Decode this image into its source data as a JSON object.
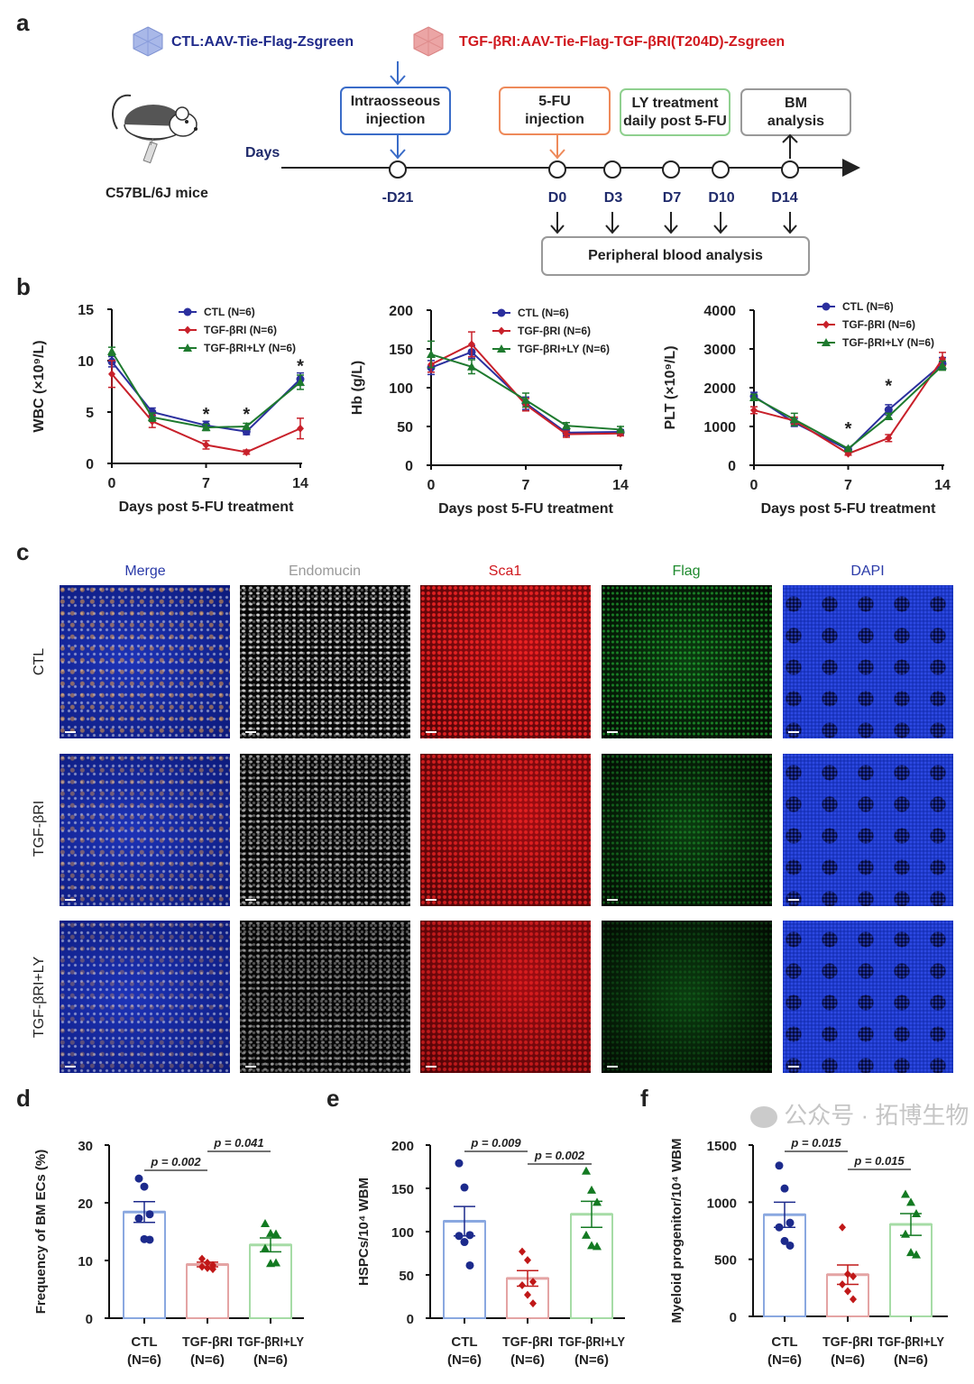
{
  "panel_letters": {
    "a": "a",
    "b": "b",
    "c": "c",
    "d": "d",
    "e": "e",
    "f": "f"
  },
  "panel_a": {
    "legend": [
      {
        "label": "CTL:AAV-Tie-Flag-Zsgreen",
        "color": "#1f2a8a"
      },
      {
        "label": "TGF-βRI:AAV-Tie-Flag-TGF-βRI(T204D)-Zsgreen",
        "color": "#d0181e"
      }
    ],
    "mouse_label": "C57BL/6J mice",
    "days_label": "Days",
    "boxes": [
      "Intraosseous\ninjection",
      "5-FU\ninjection",
      "LY treatment\ndaily post 5-FU",
      "BM\nanalysis"
    ],
    "timepoints": [
      "-D21",
      "D0",
      "D3",
      "D7",
      "D10",
      "D14"
    ],
    "blood_box": "Peripheral blood analysis"
  },
  "chart_data": [
    {
      "type": "line",
      "title": "",
      "xlabel": "Days post 5-FU treatment",
      "ylabel": "WBC (×10⁹/L)",
      "xlim": [
        0,
        14
      ],
      "ylim": [
        0,
        15
      ],
      "xticks": [
        0,
        7,
        14
      ],
      "yticks": [
        0,
        5,
        10,
        15
      ],
      "x": [
        0,
        3,
        7,
        10,
        14
      ],
      "series": [
        {
          "name": "CTL (N=6)",
          "color": "#2b2f9e",
          "marker": "circle",
          "values": [
            9.9,
            5.0,
            3.7,
            3.1,
            8.2
          ],
          "err": [
            0.5,
            0.4,
            0.4,
            0.3,
            0.6
          ]
        },
        {
          "name": "TGF-βRI (N=6)",
          "color": "#c8202a",
          "marker": "diamond",
          "values": [
            8.7,
            4.1,
            1.8,
            1.1,
            3.4
          ],
          "err": [
            1.3,
            0.6,
            0.4,
            0.2,
            1.0
          ]
        },
        {
          "name": "TGF-βRI+LY (N=6)",
          "color": "#1e7a2e",
          "marker": "triangle",
          "values": [
            10.9,
            4.5,
            3.5,
            3.6,
            7.9
          ],
          "err": [
            0.4,
            0.4,
            0.3,
            0.3,
            0.7
          ]
        }
      ],
      "annotations": [
        {
          "text": "*",
          "x": 7,
          "y": 4.9
        },
        {
          "text": "*",
          "x": 10,
          "y": 4.9
        },
        {
          "text": "*",
          "x": 14,
          "y": 9.6
        }
      ]
    },
    {
      "type": "line",
      "title": "",
      "xlabel": "Days post 5-FU treatment",
      "ylabel": "Hb (g/L)",
      "xlim": [
        0,
        14
      ],
      "ylim": [
        0,
        200
      ],
      "xticks": [
        0,
        7,
        14
      ],
      "yticks": [
        0,
        50,
        100,
        150,
        200
      ],
      "x": [
        0,
        3,
        7,
        10,
        14
      ],
      "series": [
        {
          "name": "CTL (N=6)",
          "color": "#2b2f9e",
          "marker": "circle",
          "values": [
            126,
            146,
            80,
            42,
            43
          ],
          "err": [
            9,
            8,
            8,
            4,
            3
          ]
        },
        {
          "name": "TGF-βRI (N=6)",
          "color": "#c8202a",
          "marker": "diamond",
          "values": [
            130,
            156,
            78,
            40,
            41
          ],
          "err": [
            10,
            16,
            8,
            4,
            3
          ]
        },
        {
          "name": "TGF-βRI+LY (N=6)",
          "color": "#1e7a2e",
          "marker": "triangle",
          "values": [
            143,
            127,
            84,
            51,
            46
          ],
          "err": [
            17,
            9,
            9,
            4,
            4
          ]
        }
      ],
      "annotations": []
    },
    {
      "type": "line",
      "title": "",
      "xlabel": "Days post 5-FU treatment",
      "ylabel": "PLT (×10⁹/L)",
      "xlim": [
        0,
        14
      ],
      "ylim": [
        0,
        4000
      ],
      "xticks": [
        0,
        7,
        14
      ],
      "yticks": [
        0,
        1000,
        2000,
        3000,
        4000
      ],
      "x": [
        0,
        3,
        7,
        10,
        14
      ],
      "series": [
        {
          "name": "CTL (N=6)",
          "color": "#2b2f9e",
          "marker": "circle",
          "values": [
            1780,
            1100,
            400,
            1430,
            2620
          ],
          "err": [
            100,
            100,
            40,
            130,
            160
          ]
        },
        {
          "name": "TGF-βRI (N=6)",
          "color": "#c8202a",
          "marker": "diamond",
          "values": [
            1420,
            1150,
            300,
            700,
            2740
          ],
          "err": [
            90,
            90,
            40,
            90,
            170
          ]
        },
        {
          "name": "TGF-βRI+LY (N=6)",
          "color": "#1e7a2e",
          "marker": "triangle",
          "values": [
            1750,
            1180,
            430,
            1260,
            2570
          ],
          "err": [
            80,
            160,
            40,
            80,
            120
          ]
        }
      ],
      "annotations": [
        {
          "text": "*",
          "x": 7,
          "y": 980
        },
        {
          "text": "*",
          "x": 10,
          "y": 2080
        }
      ]
    },
    {
      "type": "bar",
      "title": "",
      "xlabel": "",
      "ylabel": "Frequency of BM ECs (%)",
      "ylim": [
        0,
        30
      ],
      "yticks": [
        0,
        10,
        20,
        30
      ],
      "categories": [
        [
          "CTL",
          "(N=6)"
        ],
        [
          "TGF-βRI",
          "(N=6)"
        ],
        [
          "TGF-βRI+LY",
          "(N=6)"
        ]
      ],
      "values": [
        18.4,
        9.3,
        12.7
      ],
      "sem": [
        1.8,
        0.4,
        1.2
      ],
      "points": [
        [
          24.2,
          22.8,
          18,
          17.3,
          13.7,
          13.6
        ],
        [
          10.3,
          9.6,
          9.2,
          8.9,
          8.7,
          8.5
        ],
        [
          16.4,
          14.7,
          14.6,
          12.1,
          9.5,
          9.6
        ]
      ],
      "comparisons": [
        {
          "pair": [
            0,
            1
          ],
          "label": "p = 0.002"
        },
        {
          "pair": [
            1,
            2
          ],
          "label": "p = 0.041"
        }
      ]
    },
    {
      "type": "bar",
      "title": "",
      "xlabel": "",
      "ylabel": "HSPCs/10⁴ WBM",
      "ylim": [
        0,
        200
      ],
      "yticks": [
        0,
        50,
        100,
        150,
        200
      ],
      "categories": [
        [
          "CTL",
          "(N=6)"
        ],
        [
          "TGF-βRI",
          "(N=6)"
        ],
        [
          "TGF-βRI+LY",
          "(N=6)"
        ]
      ],
      "values": [
        112,
        46,
        120
      ],
      "sem": [
        17,
        9,
        15
      ],
      "points": [
        [
          179,
          151,
          96,
          95,
          88,
          61
        ],
        [
          77,
          67,
          42,
          38,
          27,
          17
        ],
        [
          170,
          148,
          134,
          96,
          84,
          83
        ]
      ],
      "comparisons": [
        {
          "pair": [
            0,
            1
          ],
          "label": "p = 0.009"
        },
        {
          "pair": [
            1,
            2
          ],
          "label": "p = 0.002"
        }
      ]
    },
    {
      "type": "bar",
      "title": "",
      "xlabel": "",
      "ylabel": "Myeloid progenitor/10⁴ WBM",
      "ylim": [
        0,
        1500
      ],
      "yticks": [
        0,
        500,
        1000,
        1500
      ],
      "categories": [
        [
          "CTL",
          "(N=6)"
        ],
        [
          "TGF-βRI",
          "(N=6)"
        ],
        [
          "TGF-βRI+LY",
          "(N=6)"
        ]
      ],
      "values": [
        890,
        365,
        805
      ],
      "sem": [
        110,
        85,
        95
      ],
      "points": [
        [
          1320,
          1120,
          820,
          780,
          660,
          620
        ],
        [
          780,
          370,
          350,
          280,
          220,
          150
        ],
        [
          1070,
          1000,
          900,
          720,
          560,
          540
        ]
      ],
      "comparisons": [
        {
          "pair": [
            0,
            1
          ],
          "label": "p = 0.015"
        },
        {
          "pair": [
            1,
            2
          ],
          "label": "p = 0.015"
        }
      ]
    }
  ],
  "panel_c": {
    "columns": [
      {
        "label": "Merge",
        "color": "#2a3aa8"
      },
      {
        "label": "Endomucin",
        "color": "#999999"
      },
      {
        "label": "Sca1",
        "color": "#d0181e"
      },
      {
        "label": "Flag",
        "color": "#1e8a2e"
      },
      {
        "label": "DAPI",
        "color": "#2a3aa8"
      }
    ],
    "rows": [
      "CTL",
      "TGF-βRI",
      "TGF-βRI+LY"
    ]
  },
  "watermark": "公众号 · 拓博生物"
}
